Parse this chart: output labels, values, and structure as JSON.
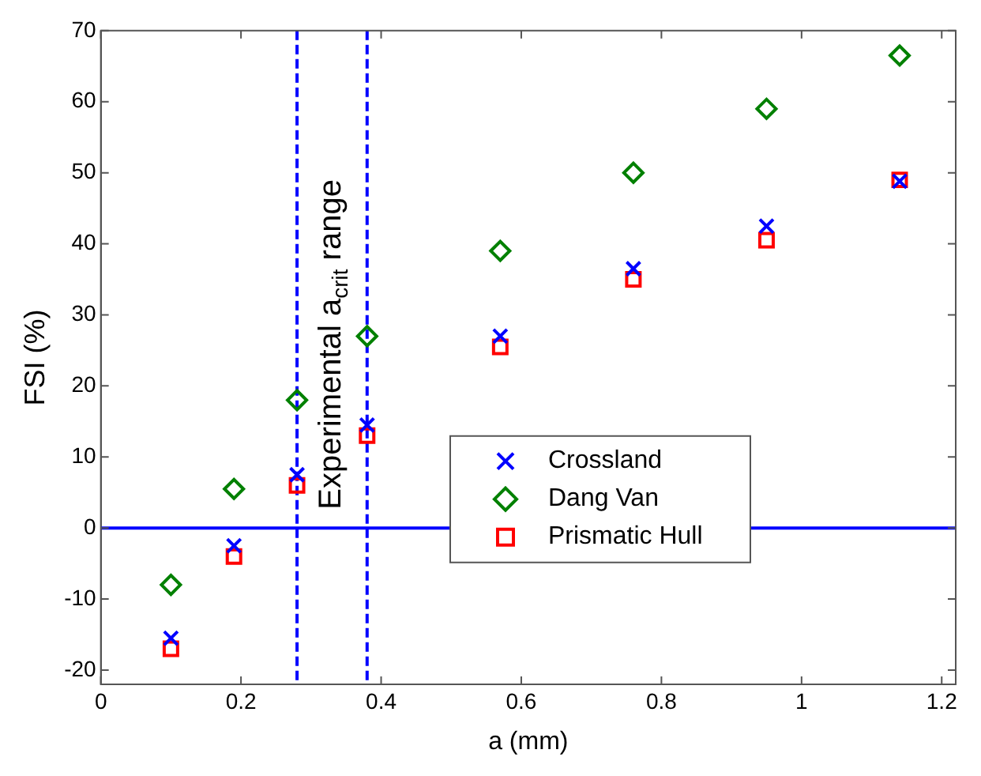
{
  "chart_data": {
    "type": "scatter",
    "xlabel": "a (mm)",
    "ylabel": "FSI (%)",
    "x": [
      0.1,
      0.19,
      0.28,
      0.38,
      0.57,
      0.76,
      0.95,
      1.14
    ],
    "series": [
      {
        "name": "Crossland",
        "color": "#0000ff",
        "marker": "cross",
        "values": [
          -15.5,
          -2.5,
          7.5,
          14.5,
          27,
          36.5,
          42.5,
          48.8
        ]
      },
      {
        "name": "Dang Van",
        "color": "#008000",
        "marker": "diamond",
        "values": [
          -8,
          5.5,
          18,
          27,
          39,
          50,
          59,
          66.5
        ]
      },
      {
        "name": "Prismatic Hull",
        "color": "#ff0000",
        "marker": "square",
        "values": [
          -17,
          -4,
          6,
          13,
          25.5,
          35,
          40.5,
          49
        ]
      }
    ],
    "xlim": [
      0,
      1.22
    ],
    "xticks": [
      0,
      0.2,
      0.4,
      0.6,
      0.8,
      1,
      1.2
    ],
    "ylim": [
      -22,
      70
    ],
    "yticks": [
      -20,
      -10,
      0,
      10,
      20,
      30,
      40,
      50,
      60,
      70
    ],
    "ref_lines": [
      {
        "axis": "x",
        "value": 0.28,
        "color": "#0000ff",
        "line_style": "dashed"
      },
      {
        "axis": "x",
        "value": 0.38,
        "color": "#0000ff",
        "line_style": "dashed"
      },
      {
        "axis": "y",
        "value": 0,
        "color": "#0000ff",
        "line_style": "solid"
      }
    ],
    "annotations": [
      "Experimental a$_{crit}$ range"
    ],
    "grid": false,
    "legend": "right"
  }
}
